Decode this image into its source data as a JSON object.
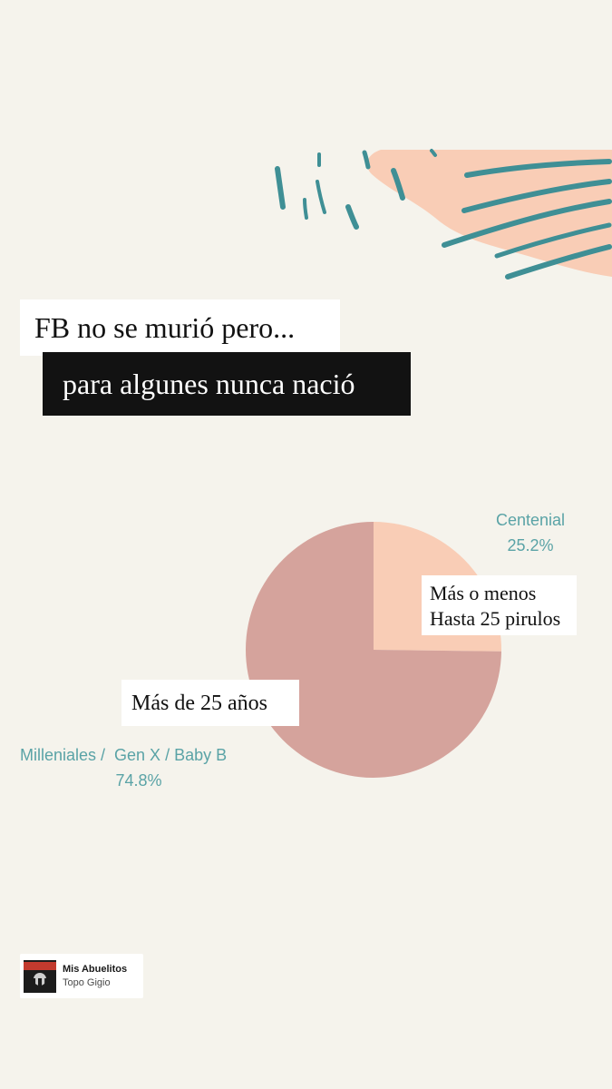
{
  "story": {
    "caption_line1": "FB no se murió pero...",
    "caption_line2": "para algunes nunca nació"
  },
  "notes": {
    "young": [
      "Más o menos",
      "Hasta 25 pirulos"
    ],
    "old": "Más de 25 años"
  },
  "music_sticker": {
    "title": "Mis Abuelitos",
    "artist": "Topo Gigio"
  },
  "colors": {
    "background": "#f5f3ec",
    "slice_centenial": "#f9cdb6",
    "slice_millenial": "#d5a39c",
    "label_teal": "#5aa3a6",
    "decor_peach": "#f9cdb6",
    "decor_teal": "#3f8f95"
  },
  "chart_data": {
    "type": "pie",
    "slices": [
      {
        "name": "Centenial",
        "value": 25.2,
        "label": "25.2%",
        "color": "#f9cdb6"
      },
      {
        "name": "Milleniales /  Gen X / Baby B",
        "value": 74.8,
        "label": "74.8%",
        "color": "#d5a39c"
      }
    ]
  }
}
